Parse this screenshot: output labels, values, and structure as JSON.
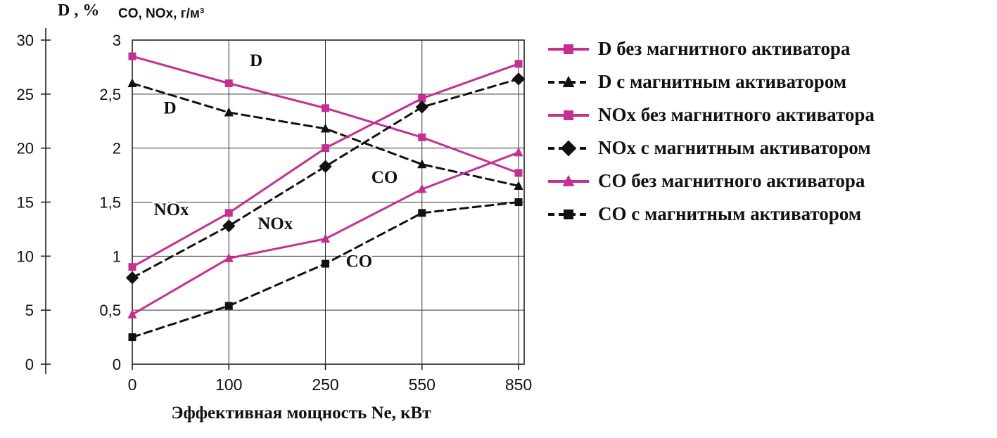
{
  "chart_data": {
    "type": "line",
    "x_categories": [
      "0",
      "100",
      "250",
      "550",
      "850"
    ],
    "x_axis_label": "Эффективная мощность Ne, кВт",
    "x_spacing": "categorical-equal",
    "grid": true,
    "legend_position": "right",
    "colors": {
      "magenta": "#c62f92",
      "black": "#111111"
    },
    "left_axis": {
      "title": "D , %",
      "range": [
        0,
        30
      ],
      "tick_values": [
        0,
        5,
        10,
        15,
        20,
        25,
        30
      ],
      "tick_labels": [
        "0",
        "5",
        "10",
        "15",
        "20",
        "25",
        "30"
      ]
    },
    "inner_axis": {
      "title": "CO, NOx, г/м³",
      "range": [
        0,
        3
      ],
      "tick_values": [
        0,
        0.5,
        1,
        1.5,
        2,
        2.5,
        3
      ],
      "tick_labels": [
        "0",
        "0,5",
        "1",
        "1,5",
        "2",
        "2,5",
        "3"
      ]
    },
    "series": [
      {
        "name": "D без магнитного активатора",
        "axis": "D",
        "color": "#c62f92",
        "dash": "solid",
        "marker": "square",
        "values": [
          28.5,
          26,
          23.7,
          21,
          17.7
        ]
      },
      {
        "name": "D с магнитным активатором",
        "axis": "D",
        "color": "#111111",
        "dash": "dashed",
        "marker": "triangle",
        "values": [
          26,
          23.3,
          21.8,
          18.5,
          16.5
        ]
      },
      {
        "name": "NOx без магнитного активатора",
        "axis": "CO-NOx",
        "color": "#c62f92",
        "dash": "solid",
        "marker": "square",
        "values": [
          0.9,
          1.4,
          2.0,
          2.46,
          2.78
        ]
      },
      {
        "name": "NOx с магнитным активатором",
        "axis": "CO-NOx",
        "color": "#111111",
        "dash": "dashed",
        "marker": "diamond",
        "values": [
          0.8,
          1.28,
          1.83,
          2.38,
          2.64
        ]
      },
      {
        "name": "CO без магнитного активатора",
        "axis": "CO-NOx",
        "color": "#c62f92",
        "dash": "solid",
        "marker": "triangle",
        "values": [
          0.46,
          0.98,
          1.16,
          1.62,
          1.96
        ]
      },
      {
        "name": "CO с магнитным активатором",
        "axis": "CO-NOx",
        "color": "#111111",
        "dash": "dashed",
        "marker": "square",
        "values": [
          0.25,
          0.54,
          0.93,
          1.4,
          1.5
        ]
      }
    ],
    "annotations": [
      {
        "text": "D",
        "fx": 0.3,
        "value": 2.76
      },
      {
        "text": "D",
        "fx": 0.08,
        "value": 2.32
      },
      {
        "text": "NOx",
        "fx": 0.055,
        "value": 1.38
      },
      {
        "text": "NOx",
        "fx": 0.32,
        "value": 1.25
      },
      {
        "text": "CO",
        "fx": 0.61,
        "value": 1.68
      },
      {
        "text": "CO",
        "fx": 0.545,
        "value": 0.9
      }
    ]
  }
}
